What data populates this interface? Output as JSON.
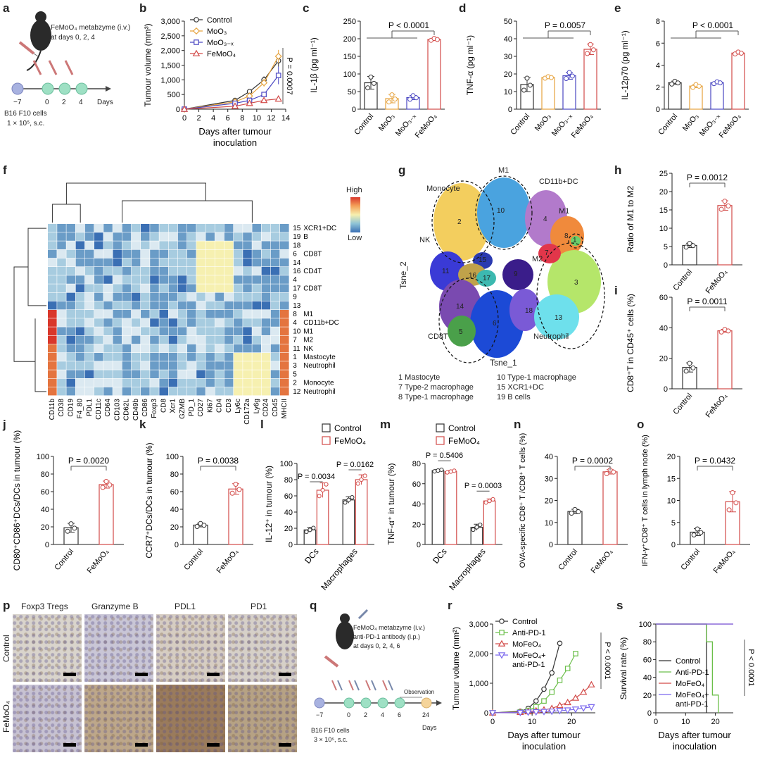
{
  "panels": {
    "a": {
      "label": "a",
      "agent": "FeMoO₄ metabzyme (i.v.)",
      "days": "at days 0, 2, 4",
      "ticks": [
        "−7",
        "0",
        "2",
        "4"
      ],
      "unit": "Days",
      "cells": "B16 F10 cells",
      "dose": "1 × 10⁵, s.c."
    },
    "b": {
      "label": "b"
    },
    "c": {
      "label": "c"
    },
    "d": {
      "label": "d"
    },
    "e": {
      "label": "e"
    },
    "f": {
      "label": "f",
      "legend_high": "High",
      "legend_low": "Low"
    },
    "g": {
      "label": "g",
      "xlabel": "Tsne_1",
      "ylabel": "Tsne_2",
      "cluster_labels": [
        "Monocyte",
        "M1",
        "CD11b+DC",
        "M1",
        "NK",
        "M2",
        "CD8T",
        "Neutrophil"
      ],
      "cluster_numbers": [
        "2",
        "10",
        "4",
        "8",
        "1",
        "11",
        "15",
        "16",
        "17",
        "9",
        "14",
        "6",
        "18",
        "5",
        "3",
        "13",
        "7"
      ],
      "key": [
        "1 Mastocyte",
        "7 Type-2 macrophage",
        "8 Type-1 macrophage",
        "10 Type-1 macrophage",
        "15 XCR1+DC",
        "19 B cells"
      ]
    },
    "h": {
      "label": "h"
    },
    "i": {
      "label": "i"
    },
    "j": {
      "label": "j"
    },
    "k": {
      "label": "k"
    },
    "l": {
      "label": "l"
    },
    "m": {
      "label": "m"
    },
    "n": {
      "label": "n"
    },
    "o": {
      "label": "o"
    },
    "p": {
      "label": "p",
      "cols": [
        "Foxp3 Tregs",
        "Granzyme B",
        "PDL1",
        "PD1"
      ],
      "rows": [
        "Control",
        "FeMoO₄"
      ]
    },
    "q": {
      "label": "q",
      "agent": "FeMoO₄ metabzyme (i.v.)",
      "antibody": "anti-PD-1 antibody (i.p.)",
      "days": "at days 0, 2, 4, 6",
      "observation": "Observation",
      "ticks": [
        "−7",
        "0",
        "2",
        "4",
        "6",
        "24"
      ],
      "unit": "Days",
      "cells": "B16 F10 cells",
      "dose": "3 × 10⁵, s.c."
    },
    "r": {
      "label": "r"
    },
    "s": {
      "label": "s"
    }
  },
  "chart_data": [
    {
      "id": "b",
      "type": "line",
      "title": "",
      "xlabel": "Days after tumour inoculation",
      "ylabel": "Tumour volume (mm³)",
      "x": [
        0,
        7,
        9,
        11,
        13
      ],
      "xlim": [
        0,
        14
      ],
      "ylim": [
        0,
        3000
      ],
      "xticks": [
        0,
        2,
        4,
        6,
        8,
        10,
        12,
        14
      ],
      "yticks": [
        0,
        500,
        1000,
        1500,
        2000,
        2500,
        3000
      ],
      "series": [
        {
          "name": "Control",
          "color": "#333333",
          "marker": "circle",
          "values": [
            0,
            300,
            600,
            1000,
            1650
          ],
          "err": [
            0,
            50,
            80,
            120,
            200
          ]
        },
        {
          "name": "MoO₃",
          "color": "#e6a23c",
          "marker": "diamond",
          "values": [
            0,
            250,
            450,
            900,
            1800
          ],
          "err": [
            0,
            40,
            70,
            130,
            220
          ]
        },
        {
          "name": "MoO₃₋ₓ",
          "color": "#4a47c2",
          "marker": "square",
          "values": [
            0,
            200,
            300,
            500,
            1150
          ],
          "err": [
            0,
            30,
            50,
            80,
            300
          ]
        },
        {
          "name": "FeMoO₄",
          "color": "#d24a48",
          "marker": "triangle",
          "values": [
            0,
            100,
            200,
            300,
            350
          ],
          "err": [
            0,
            20,
            30,
            50,
            80
          ]
        }
      ],
      "annotation": "P = 0.0007"
    },
    {
      "id": "c",
      "type": "bar",
      "ylabel": "IL-1β (pg ml⁻¹)",
      "categories": [
        "Control",
        "MoO₃",
        "MoO₃₋ₓ",
        "FeMoO₄"
      ],
      "values": [
        75,
        30,
        33,
        198
      ],
      "err": [
        18,
        12,
        6,
        3
      ],
      "ylim": [
        0,
        250
      ],
      "yticks": [
        0,
        50,
        100,
        150,
        200,
        250
      ],
      "pvalue": "P < 0.0001",
      "colors": [
        "#333333",
        "#e6a23c",
        "#4a47c2",
        "#d24a48"
      ]
    },
    {
      "id": "d",
      "type": "bar",
      "ylabel": "TNF-α (pg ml⁻¹)",
      "categories": [
        "Control",
        "MoO₃",
        "MoO₃₋ₓ",
        "FeMoO₄"
      ],
      "values": [
        14,
        18,
        19,
        34
      ],
      "err": [
        4,
        0.5,
        2,
        3
      ],
      "ylim": [
        0,
        50
      ],
      "yticks": [
        0,
        10,
        20,
        30,
        40,
        50
      ],
      "pvalue": "P = 0.0057",
      "colors": [
        "#333333",
        "#e6a23c",
        "#4a47c2",
        "#d24a48"
      ]
    },
    {
      "id": "e",
      "type": "bar",
      "ylabel": "IL-12p70 (pg ml⁻¹)",
      "categories": [
        "Control",
        "MoO₃",
        "MoO₃₋ₓ",
        "FeMoO₄"
      ],
      "values": [
        2.4,
        2.1,
        2.4,
        5.1
      ],
      "err": [
        0.15,
        0.15,
        0.1,
        0.1
      ],
      "ylim": [
        0,
        8
      ],
      "yticks": [
        0,
        2,
        4,
        6,
        8
      ],
      "pvalue": "P < 0.0001",
      "colors": [
        "#333333",
        "#e6a23c",
        "#4a47c2",
        "#d24a48"
      ]
    },
    {
      "id": "f",
      "type": "heatmap",
      "columns": [
        "CD11b",
        "CD38",
        "CD19",
        "F4_80",
        "PDL1",
        "CD11c",
        "CD64",
        "CD103",
        "CD62L",
        "CD49b",
        "CD86",
        "Foxp3",
        "CD8",
        "Xcr1",
        "GZMB",
        "PD_1",
        "CD27",
        "Ki67",
        "CD4",
        "CD3",
        "Ly6c",
        "CD172a",
        "Ly6g",
        "CD24",
        "CD45",
        "MHCII"
      ],
      "rows": [
        "15",
        "19",
        "18",
        "6",
        "14",
        "16",
        "4",
        "17",
        "9",
        "13",
        "8",
        "4",
        "10",
        "7",
        "11",
        "1",
        "3",
        "5",
        "2",
        "12"
      ],
      "row_groups": [
        {
          "name": "XCR1+DC"
        },
        {
          "name": "B"
        },
        {
          "name": "CD8T"
        },
        {
          "name": "CD4T"
        },
        {
          "name": "CD8T"
        },
        {
          "name": "M1"
        },
        {
          "name": "CD11b+DC"
        },
        {
          "name": "M1"
        },
        {
          "name": "M2"
        },
        {
          "name": "NK"
        },
        {
          "name": "Mastocyte"
        },
        {
          "name": "Neutrophil"
        },
        {
          "name": "Monocyte"
        },
        {
          "name": "Neutrophil"
        }
      ]
    },
    {
      "id": "h",
      "type": "bar",
      "ylabel": "Ratio of M1 to M2",
      "categories": [
        "Control",
        "FeMoO₄"
      ],
      "values": [
        5.3,
        16.2
      ],
      "err": [
        0.6,
        1.3
      ],
      "ylim": [
        0,
        25
      ],
      "yticks": [
        0,
        5,
        10,
        15,
        20,
        25
      ],
      "pvalue": "P = 0.0012",
      "colors": [
        "#333333",
        "#d24a48"
      ]
    },
    {
      "id": "i",
      "type": "bar",
      "ylabel": "CD8⁺T in CD45⁺ cells (%)",
      "categories": [
        "Control",
        "FeMoO₄"
      ],
      "values": [
        14,
        38
      ],
      "err": [
        3,
        1
      ],
      "ylim": [
        0,
        60
      ],
      "yticks": [
        0,
        20,
        40,
        60
      ],
      "pvalue": "P = 0.0011",
      "colors": [
        "#333333",
        "#d24a48"
      ]
    },
    {
      "id": "j",
      "type": "bar",
      "ylabel": "CD80⁺CD86⁺DCs/DCs in tumour (%)",
      "categories": [
        "Control",
        "FeMoO₄"
      ],
      "values": [
        19,
        68
      ],
      "err": [
        5,
        4
      ],
      "ylim": [
        0,
        100
      ],
      "yticks": [
        0,
        20,
        40,
        60,
        80,
        100
      ],
      "pvalue": "P = 0.0020",
      "colors": [
        "#333333",
        "#d24a48"
      ]
    },
    {
      "id": "k",
      "type": "bar",
      "ylabel": "CCR7⁺DCs/DCs in tumour (%)",
      "categories": [
        "Control",
        "FeMoO₄"
      ],
      "values": [
        22,
        63
      ],
      "err": [
        2,
        6
      ],
      "ylim": [
        0,
        100
      ],
      "yticks": [
        0,
        20,
        40,
        60,
        80,
        100
      ],
      "pvalue": "P = 0.0038",
      "colors": [
        "#333333",
        "#d24a48"
      ]
    },
    {
      "id": "l",
      "type": "bar",
      "ylabel": "IL-12⁺ in tumour (%)",
      "categories": [
        "DCs",
        "Macrophages"
      ],
      "series": [
        {
          "name": "Control",
          "values": [
            18,
            55
          ],
          "err": [
            3,
            4
          ]
        },
        {
          "name": "FeMoO₄",
          "values": [
            67,
            80
          ],
          "err": [
            9,
            6
          ]
        }
      ],
      "ylim": [
        0,
        100
      ],
      "yticks": [
        0,
        20,
        40,
        60,
        80,
        100
      ],
      "pvalues": [
        "P = 0.0034",
        "P = 0.0162"
      ]
    },
    {
      "id": "m",
      "type": "bar",
      "ylabel": "TNF-α⁺ in tumour (%)",
      "categories": [
        "DCs",
        "Macrophages"
      ],
      "series": [
        {
          "name": "Control",
          "values": [
            73,
            17
          ],
          "err": [
            1,
            3
          ]
        },
        {
          "name": "FeMoO₄",
          "values": [
            72,
            43
          ],
          "err": [
            1,
            2
          ]
        }
      ],
      "ylim": [
        0,
        80
      ],
      "yticks": [
        0,
        20,
        40,
        60,
        80
      ],
      "pvalues": [
        "P = 0.5406",
        "P = 0.0003"
      ]
    },
    {
      "id": "n",
      "type": "bar",
      "ylabel": "OVA-specific CD8⁺ T /CD8⁺ T cells (%)",
      "categories": [
        "Control",
        "FeMoO₄"
      ],
      "values": [
        15,
        33
      ],
      "err": [
        1,
        1
      ],
      "ylim": [
        0,
        40
      ],
      "yticks": [
        0,
        10,
        20,
        30,
        40
      ],
      "pvalue": "P = 0.0002",
      "colors": [
        "#333333",
        "#d24a48"
      ]
    },
    {
      "id": "o",
      "type": "bar",
      "ylabel": "IFN-γ⁺CD8⁺ T cells in lymph node (%)",
      "categories": [
        "Control",
        "FeMoO₄"
      ],
      "values": [
        2.8,
        9.7
      ],
      "err": [
        0.8,
        2.3
      ],
      "ylim": [
        0,
        20
      ],
      "yticks": [
        0,
        5,
        10,
        15,
        20
      ],
      "pvalue": "P = 0.0432",
      "colors": [
        "#333333",
        "#d24a48"
      ]
    },
    {
      "id": "r",
      "type": "line",
      "xlabel": "Days after tumour inoculation",
      "ylabel": "Tumour volume (mm²)",
      "xlim": [
        0,
        26
      ],
      "ylim": [
        0,
        3000
      ],
      "xticks": [
        0,
        10,
        20
      ],
      "yticks": [
        0,
        1000,
        2000,
        3000
      ],
      "series": [
        {
          "name": "Control",
          "color": "#333333",
          "marker": "circle",
          "x": [
            0,
            7,
            9,
            11,
            13,
            15,
            17
          ],
          "values": [
            0,
            50,
            150,
            400,
            800,
            1350,
            2350
          ]
        },
        {
          "name": "Anti-PD-1",
          "color": "#6bbf4a",
          "marker": "square",
          "x": [
            0,
            7,
            9,
            11,
            13,
            15,
            17,
            19,
            21
          ],
          "values": [
            0,
            30,
            80,
            200,
            400,
            700,
            1100,
            1500,
            2000
          ]
        },
        {
          "name": "MoFeO₄",
          "color": "#d24a48",
          "marker": "triangle",
          "x": [
            0,
            7,
            9,
            11,
            13,
            15,
            17,
            19,
            21,
            23,
            25
          ],
          "values": [
            0,
            20,
            40,
            70,
            100,
            150,
            250,
            350,
            500,
            700,
            950
          ]
        },
        {
          "name": "MoFeO₄+ anti-PD-1",
          "color": "#7b68ee",
          "marker": "triangle-down",
          "x": [
            0,
            7,
            9,
            11,
            13,
            15,
            17,
            19,
            21,
            23,
            25
          ],
          "values": [
            0,
            10,
            20,
            30,
            40,
            50,
            70,
            90,
            120,
            160,
            200
          ]
        }
      ],
      "annotation": "P < 0.0001"
    },
    {
      "id": "s",
      "type": "line",
      "xlabel": "Days after tumour inoculation",
      "ylabel": "Survival rate (%)",
      "xlim": [
        0,
        26
      ],
      "ylim": [
        0,
        100
      ],
      "xticks": [
        0,
        10,
        20
      ],
      "yticks": [
        0,
        20,
        40,
        60,
        80,
        100
      ],
      "series": [
        {
          "name": "Control",
          "color": "#333333",
          "steps": [
            [
              0,
              100
            ],
            [
              17,
              100
            ],
            [
              17,
              0
            ]
          ]
        },
        {
          "name": "Anti-PD-1",
          "color": "#6bbf4a",
          "steps": [
            [
              0,
              100
            ],
            [
              17,
              100
            ],
            [
              17,
              80
            ],
            [
              19,
              80
            ],
            [
              19,
              20
            ],
            [
              21,
              20
            ],
            [
              21,
              0
            ]
          ]
        },
        {
          "name": "MoFeO₄",
          "color": "#d24a48",
          "steps": [
            [
              0,
              100
            ],
            [
              26,
              100
            ]
          ]
        },
        {
          "name": "MoFeO₄+ anti-PD-1",
          "color": "#7b68ee",
          "steps": [
            [
              0,
              100
            ],
            [
              26,
              100
            ]
          ]
        }
      ],
      "annotation": "P < 0.0001"
    }
  ]
}
